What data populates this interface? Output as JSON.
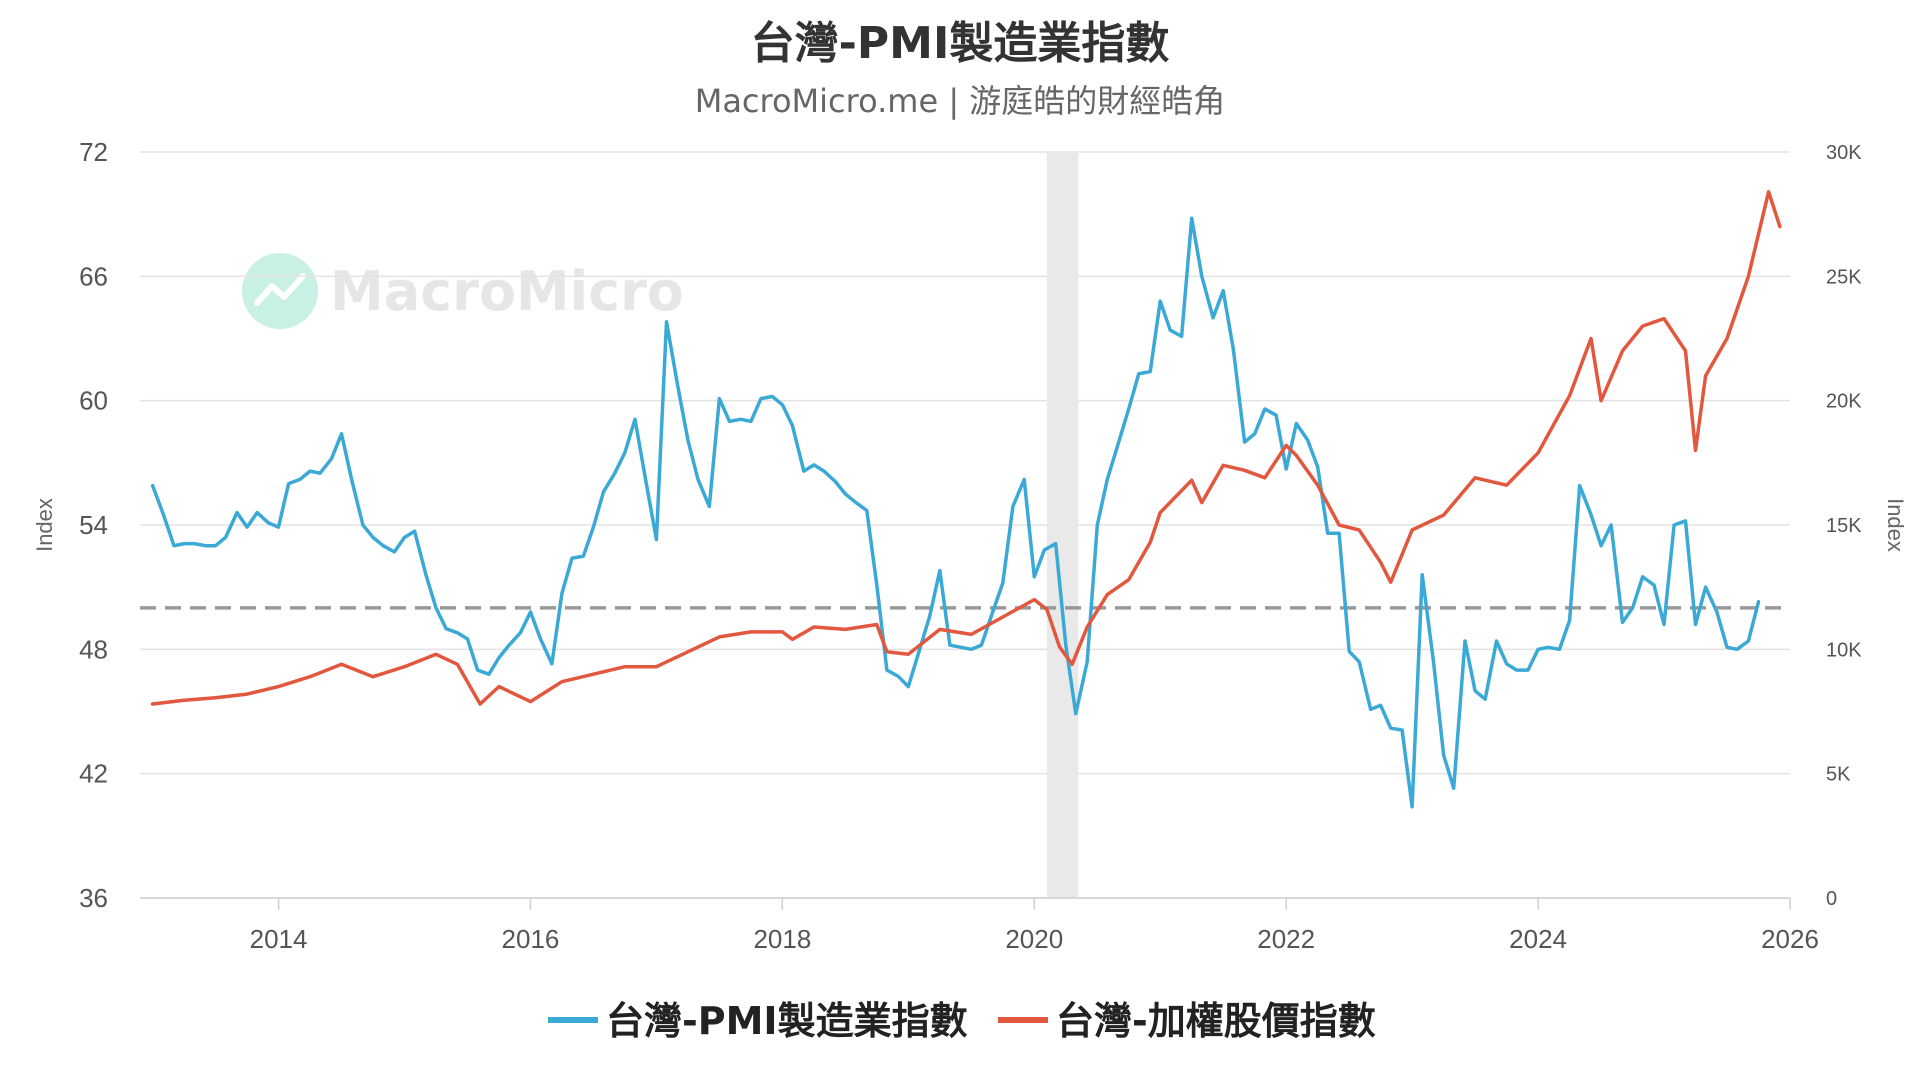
{
  "colors": {
    "pmi": "#3ba9d6",
    "taiex": "#e2583e",
    "grid": "#e3e3e3",
    "reference": "#999999",
    "recession": "#e9e9e9",
    "watermark_icon": "#c9f0e4"
  },
  "chart_data": {
    "type": "line",
    "title": "台灣-PMI製造業指數",
    "subtitle": "MacroMicro.me | 游庭皓的財經皓角",
    "watermark": "MacroMicro",
    "y_left": {
      "label": "Index",
      "lim": [
        36,
        72
      ],
      "ticks": [
        "72",
        "66",
        "60",
        "54",
        "48",
        "42",
        "36"
      ]
    },
    "y_right": {
      "label": "Index",
      "lim": [
        0,
        30000
      ],
      "ticks": [
        "30K",
        "25K",
        "20K",
        "15K",
        "10K",
        "5K",
        "0"
      ]
    },
    "x": {
      "lim": [
        2012.9,
        2026.0
      ],
      "ticks": [
        "2014",
        "2016",
        "2018",
        "2020",
        "2022",
        "2024",
        "2026"
      ]
    },
    "reference_line": {
      "axis": "left",
      "value": 50
    },
    "recession_band": [
      2020.1,
      2020.35
    ],
    "legend": {
      "placement": "bottom-center"
    },
    "series": [
      {
        "name": "台灣-PMI製造業指數",
        "axis": "left",
        "points": [
          [
            2013.0,
            55.9
          ],
          [
            2013.08,
            54.6
          ],
          [
            2013.17,
            53.0
          ],
          [
            2013.25,
            53.1
          ],
          [
            2013.33,
            53.1
          ],
          [
            2013.42,
            53.0
          ],
          [
            2013.5,
            53.0
          ],
          [
            2013.58,
            53.4
          ],
          [
            2013.67,
            54.6
          ],
          [
            2013.75,
            53.9
          ],
          [
            2013.83,
            54.6
          ],
          [
            2013.92,
            54.1
          ],
          [
            2014.0,
            53.9
          ],
          [
            2014.08,
            56.0
          ],
          [
            2014.17,
            56.2
          ],
          [
            2014.25,
            56.6
          ],
          [
            2014.33,
            56.5
          ],
          [
            2014.42,
            57.2
          ],
          [
            2014.5,
            58.4
          ],
          [
            2014.58,
            56.2
          ],
          [
            2014.67,
            54.0
          ],
          [
            2014.75,
            53.4
          ],
          [
            2014.83,
            53.0
          ],
          [
            2014.92,
            52.7
          ],
          [
            2015.0,
            53.4
          ],
          [
            2015.08,
            53.7
          ],
          [
            2015.17,
            51.6
          ],
          [
            2015.25,
            50.0
          ],
          [
            2015.33,
            49.0
          ],
          [
            2015.42,
            48.8
          ],
          [
            2015.5,
            48.5
          ],
          [
            2015.58,
            47.0
          ],
          [
            2015.67,
            46.8
          ],
          [
            2015.75,
            47.6
          ],
          [
            2015.83,
            48.2
          ],
          [
            2015.92,
            48.8
          ],
          [
            2016.0,
            49.8
          ],
          [
            2016.08,
            48.5
          ],
          [
            2016.17,
            47.3
          ],
          [
            2016.25,
            50.7
          ],
          [
            2016.33,
            52.4
          ],
          [
            2016.42,
            52.5
          ],
          [
            2016.5,
            53.9
          ],
          [
            2016.58,
            55.6
          ],
          [
            2016.67,
            56.5
          ],
          [
            2016.75,
            57.5
          ],
          [
            2016.83,
            59.1
          ],
          [
            2016.92,
            56.0
          ],
          [
            2017.0,
            53.3
          ],
          [
            2017.08,
            63.8
          ],
          [
            2017.17,
            60.7
          ],
          [
            2017.25,
            58.1
          ],
          [
            2017.33,
            56.2
          ],
          [
            2017.42,
            54.9
          ],
          [
            2017.5,
            60.1
          ],
          [
            2017.58,
            59.0
          ],
          [
            2017.67,
            59.1
          ],
          [
            2017.75,
            59.0
          ],
          [
            2017.83,
            60.1
          ],
          [
            2017.92,
            60.2
          ],
          [
            2018.0,
            59.8
          ],
          [
            2018.08,
            58.8
          ],
          [
            2018.17,
            56.6
          ],
          [
            2018.25,
            56.9
          ],
          [
            2018.33,
            56.6
          ],
          [
            2018.42,
            56.1
          ],
          [
            2018.5,
            55.5
          ],
          [
            2018.58,
            55.1
          ],
          [
            2018.67,
            54.7
          ],
          [
            2018.75,
            51.1
          ],
          [
            2018.83,
            47.0
          ],
          [
            2018.92,
            46.7
          ],
          [
            2019.0,
            46.2
          ],
          [
            2019.08,
            47.8
          ],
          [
            2019.17,
            49.6
          ],
          [
            2019.25,
            51.8
          ],
          [
            2019.33,
            48.2
          ],
          [
            2019.42,
            48.1
          ],
          [
            2019.5,
            48.0
          ],
          [
            2019.58,
            48.2
          ],
          [
            2019.67,
            49.8
          ],
          [
            2019.75,
            51.2
          ],
          [
            2019.83,
            54.9
          ],
          [
            2019.92,
            56.2
          ],
          [
            2020.0,
            51.5
          ],
          [
            2020.08,
            52.8
          ],
          [
            2020.17,
            53.1
          ],
          [
            2020.25,
            48.2
          ],
          [
            2020.33,
            44.9
          ],
          [
            2020.42,
            47.4
          ],
          [
            2020.5,
            54.0
          ],
          [
            2020.58,
            56.2
          ],
          [
            2020.67,
            58.0
          ],
          [
            2020.75,
            59.6
          ],
          [
            2020.83,
            61.3
          ],
          [
            2020.92,
            61.4
          ],
          [
            2021.0,
            64.8
          ],
          [
            2021.08,
            63.4
          ],
          [
            2021.17,
            63.1
          ],
          [
            2021.25,
            68.8
          ],
          [
            2021.33,
            66.0
          ],
          [
            2021.42,
            64.0
          ],
          [
            2021.5,
            65.3
          ],
          [
            2021.58,
            62.5
          ],
          [
            2021.67,
            58.0
          ],
          [
            2021.75,
            58.4
          ],
          [
            2021.83,
            59.6
          ],
          [
            2021.92,
            59.3
          ],
          [
            2022.0,
            56.7
          ],
          [
            2022.08,
            58.9
          ],
          [
            2022.17,
            58.1
          ],
          [
            2022.25,
            56.8
          ],
          [
            2022.33,
            53.6
          ],
          [
            2022.42,
            53.6
          ],
          [
            2022.5,
            47.9
          ],
          [
            2022.58,
            47.4
          ],
          [
            2022.67,
            45.1
          ],
          [
            2022.75,
            45.3
          ],
          [
            2022.83,
            44.2
          ],
          [
            2022.92,
            44.1
          ],
          [
            2023.0,
            40.4
          ],
          [
            2023.08,
            51.6
          ],
          [
            2023.17,
            47.4
          ],
          [
            2023.25,
            42.9
          ],
          [
            2023.33,
            41.3
          ],
          [
            2023.42,
            48.4
          ],
          [
            2023.5,
            46.0
          ],
          [
            2023.58,
            45.6
          ],
          [
            2023.67,
            48.4
          ],
          [
            2023.75,
            47.3
          ],
          [
            2023.83,
            47.0
          ],
          [
            2023.92,
            47.0
          ],
          [
            2024.0,
            48.0
          ],
          [
            2024.08,
            48.1
          ],
          [
            2024.17,
            48.0
          ],
          [
            2024.25,
            49.4
          ],
          [
            2024.33,
            55.9
          ],
          [
            2024.42,
            54.5
          ],
          [
            2024.5,
            53.0
          ],
          [
            2024.58,
            54.0
          ],
          [
            2024.67,
            49.3
          ],
          [
            2024.75,
            50.0
          ],
          [
            2024.83,
            51.5
          ],
          [
            2024.92,
            51.1
          ],
          [
            2025.0,
            49.2
          ],
          [
            2025.08,
            54.0
          ],
          [
            2025.17,
            54.2
          ],
          [
            2025.25,
            49.2
          ],
          [
            2025.33,
            51.0
          ],
          [
            2025.42,
            49.8
          ],
          [
            2025.5,
            48.1
          ],
          [
            2025.58,
            48.0
          ],
          [
            2025.67,
            48.4
          ],
          [
            2025.75,
            50.3
          ]
        ]
      },
      {
        "name": "台灣-加權股價指數",
        "axis": "right",
        "points": [
          [
            2013.0,
            7800
          ],
          [
            2013.25,
            7950
          ],
          [
            2013.5,
            8050
          ],
          [
            2013.75,
            8200
          ],
          [
            2014.0,
            8500
          ],
          [
            2014.25,
            8900
          ],
          [
            2014.5,
            9400
          ],
          [
            2014.75,
            8900
          ],
          [
            2015.0,
            9300
          ],
          [
            2015.25,
            9800
          ],
          [
            2015.42,
            9400
          ],
          [
            2015.6,
            7800
          ],
          [
            2015.75,
            8500
          ],
          [
            2016.0,
            7900
          ],
          [
            2016.25,
            8700
          ],
          [
            2016.5,
            9000
          ],
          [
            2016.75,
            9300
          ],
          [
            2017.0,
            9300
          ],
          [
            2017.25,
            9900
          ],
          [
            2017.5,
            10500
          ],
          [
            2017.75,
            10700
          ],
          [
            2018.0,
            10700
          ],
          [
            2018.08,
            10400
          ],
          [
            2018.25,
            10900
          ],
          [
            2018.5,
            10800
          ],
          [
            2018.75,
            11000
          ],
          [
            2018.83,
            9900
          ],
          [
            2019.0,
            9800
          ],
          [
            2019.25,
            10800
          ],
          [
            2019.5,
            10600
          ],
          [
            2019.75,
            11300
          ],
          [
            2020.0,
            12000
          ],
          [
            2020.1,
            11600
          ],
          [
            2020.2,
            10100
          ],
          [
            2020.3,
            9400
          ],
          [
            2020.42,
            10900
          ],
          [
            2020.58,
            12200
          ],
          [
            2020.75,
            12800
          ],
          [
            2020.92,
            14300
          ],
          [
            2021.0,
            15500
          ],
          [
            2021.25,
            16800
          ],
          [
            2021.33,
            15900
          ],
          [
            2021.5,
            17400
          ],
          [
            2021.67,
            17200
          ],
          [
            2021.83,
            16900
          ],
          [
            2022.0,
            18200
          ],
          [
            2022.08,
            17800
          ],
          [
            2022.25,
            16600
          ],
          [
            2022.42,
            15000
          ],
          [
            2022.58,
            14800
          ],
          [
            2022.75,
            13500
          ],
          [
            2022.83,
            12700
          ],
          [
            2023.0,
            14800
          ],
          [
            2023.25,
            15400
          ],
          [
            2023.5,
            16900
          ],
          [
            2023.75,
            16600
          ],
          [
            2024.0,
            17900
          ],
          [
            2024.25,
            20200
          ],
          [
            2024.42,
            22500
          ],
          [
            2024.5,
            20000
          ],
          [
            2024.67,
            22000
          ],
          [
            2024.83,
            23000
          ],
          [
            2025.0,
            23300
          ],
          [
            2025.17,
            22000
          ],
          [
            2025.25,
            18000
          ],
          [
            2025.33,
            21000
          ],
          [
            2025.5,
            22500
          ],
          [
            2025.67,
            25000
          ],
          [
            2025.83,
            28400
          ],
          [
            2025.92,
            27000
          ]
        ]
      }
    ]
  }
}
